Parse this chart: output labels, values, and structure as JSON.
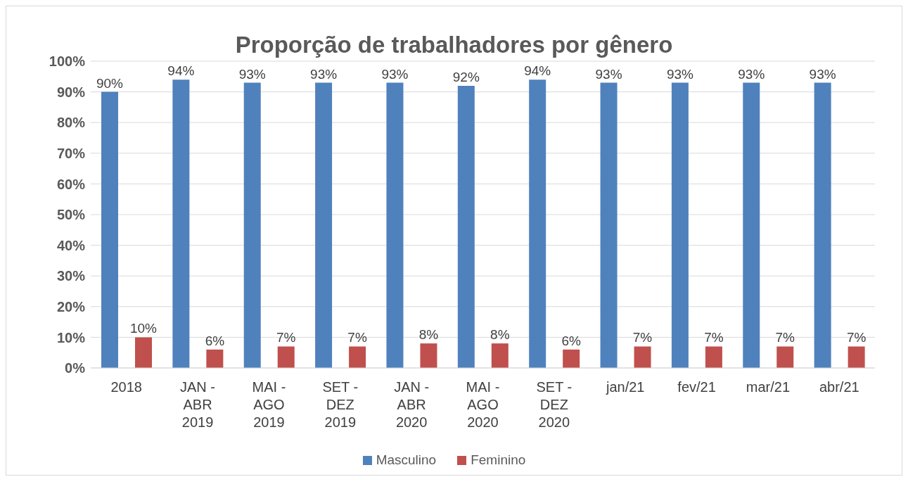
{
  "chart_data": {
    "type": "bar",
    "title": "Proporção de trabalhadores por gênero",
    "categories": [
      "2018",
      "JAN - ABR 2019",
      "MAI - AGO 2019",
      "SET - DEZ 2019",
      "JAN - ABR 2020",
      "MAI - AGO 2020",
      "SET - DEZ 2020",
      "jan/21",
      "fev/21",
      "mar/21",
      "abr/21"
    ],
    "series": [
      {
        "name": "Masculino",
        "color": "#4f81bd",
        "values": [
          90,
          94,
          93,
          93,
          93,
          92,
          94,
          93,
          93,
          93,
          93
        ],
        "value_labels": [
          "90%",
          "94%",
          "93%",
          "93%",
          "93%",
          "92%",
          "94%",
          "93%",
          "93%",
          "93%",
          "93%"
        ]
      },
      {
        "name": "Feminino",
        "color": "#c0504d",
        "values": [
          10,
          6,
          7,
          7,
          8,
          8,
          6,
          7,
          7,
          7,
          7
        ],
        "value_labels": [
          "10%",
          "6%",
          "7%",
          "7%",
          "8%",
          "8%",
          "6%",
          "7%",
          "7%",
          "7%",
          "7%"
        ]
      }
    ],
    "ylim": [
      0,
      100
    ],
    "yticks": [
      {
        "value": 0,
        "label": "0%"
      },
      {
        "value": 10,
        "label": "10%"
      },
      {
        "value": 20,
        "label": "20%"
      },
      {
        "value": 30,
        "label": "30%"
      },
      {
        "value": 40,
        "label": "40%"
      },
      {
        "value": 50,
        "label": "50%"
      },
      {
        "value": 60,
        "label": "60%"
      },
      {
        "value": 70,
        "label": "70%"
      },
      {
        "value": 80,
        "label": "80%"
      },
      {
        "value": 90,
        "label": "90%"
      },
      {
        "value": 100,
        "label": "100%"
      }
    ],
    "grid": "y",
    "legend": "bottom"
  }
}
